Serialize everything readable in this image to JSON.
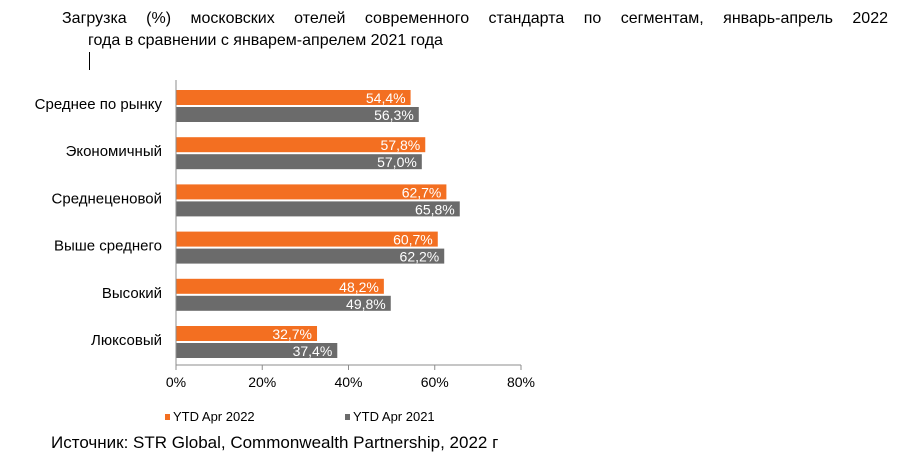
{
  "title": {
    "line1": "Загрузка (%) московских отелей современного стандарта по сегментам, январь-апрель 2022",
    "line2": "года в сравнении с январем-апрелем 2021 года"
  },
  "source": "Источник: STR Global, Commonwealth Partnership, 2022 г",
  "chart_data": {
    "type": "bar",
    "orientation": "horizontal",
    "categories": [
      "Среднее по рынку",
      "Экономичный",
      "Среднеценовой",
      "Выше среднего",
      "Высокий",
      "Люксовый"
    ],
    "series": [
      {
        "name": "YTD Apr 2022",
        "color": "#f36f21",
        "values": [
          54.4,
          57.8,
          62.7,
          60.7,
          48.2,
          32.7
        ],
        "labels": [
          "54,4%",
          "57,8%",
          "62,7%",
          "60,7%",
          "48,2%",
          "32,7%"
        ]
      },
      {
        "name": "YTD Apr 2021",
        "color": "#6b6b6b",
        "values": [
          56.3,
          57.0,
          65.8,
          62.2,
          49.8,
          37.4
        ],
        "labels": [
          "56,3%",
          "57,0%",
          "65,8%",
          "62,2%",
          "49,8%",
          "37,4%"
        ]
      }
    ],
    "xlim": [
      0,
      80
    ],
    "xticks": [
      0,
      20,
      40,
      60,
      80
    ],
    "xtick_labels": [
      "0%",
      "20%",
      "40%",
      "60%",
      "80%"
    ],
    "legend_position": "bottom",
    "grid": false
  }
}
